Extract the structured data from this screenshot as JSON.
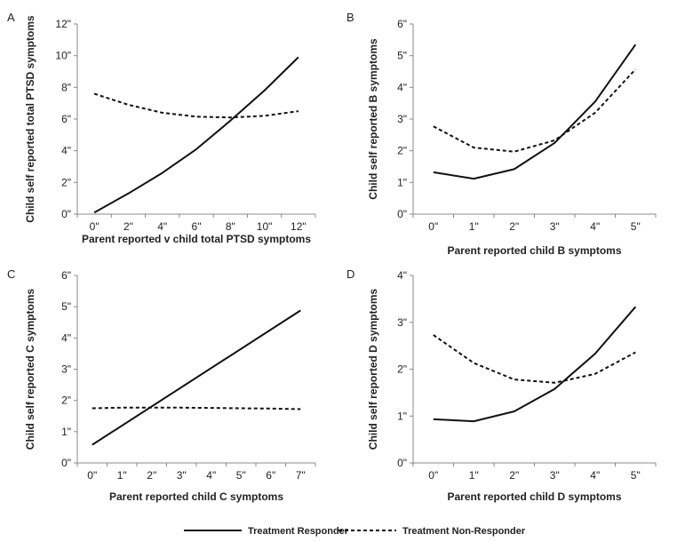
{
  "legend": {
    "items": [
      {
        "label": "Treatment Responder",
        "style": "solid"
      },
      {
        "label": "Treatment Non-Responder",
        "style": "dashed"
      }
    ],
    "placement": "bottom-center"
  },
  "colors": {
    "line": "#111111",
    "axis": "#888888"
  },
  "chart_data": [
    {
      "panel": "A",
      "type": "line",
      "xlabel": "Parent reported v child total PTSD symptoms",
      "ylabel": "Child self reported total PTSD symptoms",
      "x_ticks": [
        "0\"",
        "2\"",
        "4\"",
        "6\"",
        "8\"",
        "10\"",
        "12\""
      ],
      "y_ticks": [
        "0\"",
        "2\"",
        "4\"",
        "6\"",
        "8\"",
        "10\"",
        "12\""
      ],
      "xlim": [
        -1,
        13
      ],
      "ylim": [
        0,
        12
      ],
      "grid": false,
      "series": [
        {
          "name": "Treatment Responder",
          "style": "solid",
          "x": [
            0,
            2,
            4,
            6,
            8,
            10,
            12
          ],
          "y": [
            0.1,
            1.3,
            2.6,
            4.1,
            5.9,
            7.8,
            9.9
          ]
        },
        {
          "name": "Treatment Non-Responder",
          "style": "dashed",
          "x": [
            0,
            2,
            4,
            6,
            8,
            10,
            12
          ],
          "y": [
            7.6,
            6.9,
            6.4,
            6.15,
            6.1,
            6.2,
            6.5
          ]
        }
      ]
    },
    {
      "panel": "B",
      "type": "line",
      "xlabel": "Parent reported child B symptoms",
      "ylabel": "Child self reported B symptoms",
      "x_ticks": [
        "0\"",
        "1\"",
        "2\"",
        "3\"",
        "4\"",
        "5\""
      ],
      "y_ticks": [
        "0\"",
        "1\"",
        "2\"",
        "3\"",
        "4\"",
        "5\"",
        "6\""
      ],
      "xlim": [
        -0.5,
        5.5
      ],
      "ylim": [
        0,
        6
      ],
      "grid": false,
      "series": [
        {
          "name": "Treatment Responder",
          "style": "solid",
          "x": [
            0,
            1,
            2,
            3,
            4,
            5
          ],
          "y": [
            1.32,
            1.12,
            1.42,
            2.25,
            3.55,
            5.35
          ]
        },
        {
          "name": "Treatment Non-Responder",
          "style": "dashed",
          "x": [
            0,
            1,
            2,
            3,
            4,
            5
          ],
          "y": [
            2.77,
            2.1,
            1.97,
            2.33,
            3.2,
            4.57
          ]
        }
      ]
    },
    {
      "panel": "C",
      "type": "line",
      "xlabel": "Parent reported child C symptoms",
      "ylabel": "Child self reported C symptoms",
      "x_ticks": [
        "0\"",
        "1\"",
        "2\"",
        "3\"",
        "4\"",
        "5\"",
        "6\"",
        "7\""
      ],
      "y_ticks": [
        "0\"",
        "1\"",
        "2\"",
        "3\"",
        "4\"",
        "5\"",
        "6\""
      ],
      "xlim": [
        -0.5,
        7.5
      ],
      "ylim": [
        0,
        6
      ],
      "grid": false,
      "series": [
        {
          "name": "Treatment Responder",
          "style": "solid",
          "x": [
            0,
            7
          ],
          "y": [
            0.58,
            4.88
          ]
        },
        {
          "name": "Treatment Non-Responder",
          "style": "dashed",
          "x": [
            0,
            1,
            2,
            3,
            4,
            5,
            6,
            7
          ],
          "y": [
            1.75,
            1.77,
            1.77,
            1.77,
            1.76,
            1.75,
            1.74,
            1.72
          ]
        }
      ]
    },
    {
      "panel": "D",
      "type": "line",
      "xlabel": "Parent reported child D symptoms",
      "ylabel": "Child self reported D symptoms",
      "x_ticks": [
        "0\"",
        "1\"",
        "2\"",
        "3\"",
        "4\"",
        "5\""
      ],
      "y_ticks": [
        "0\"",
        "1\"",
        "2\"",
        "3\"",
        "4\""
      ],
      "xlim": [
        -0.5,
        5.5
      ],
      "ylim": [
        0,
        4
      ],
      "grid": false,
      "series": [
        {
          "name": "Treatment Responder",
          "style": "solid",
          "x": [
            0,
            1,
            2,
            3,
            4,
            5
          ],
          "y": [
            0.93,
            0.89,
            1.1,
            1.58,
            2.33,
            3.33
          ]
        },
        {
          "name": "Treatment Non-Responder",
          "style": "dashed",
          "x": [
            0,
            1,
            2,
            3,
            4,
            5
          ],
          "y": [
            2.73,
            2.13,
            1.78,
            1.71,
            1.9,
            2.36
          ]
        }
      ]
    }
  ]
}
